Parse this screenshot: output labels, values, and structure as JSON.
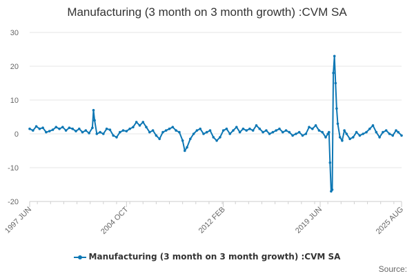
{
  "chart_data": {
    "type": "line",
    "title": "Manufacturing (3 month on 3 month growth) :CVM SA",
    "xlabel": "",
    "ylabel": "",
    "ylim": [
      -20,
      30
    ],
    "yticks": [
      30,
      20,
      10,
      0,
      -10,
      -20
    ],
    "xticks": [
      "1997 JUN",
      "2004 OCT",
      "2012 FEB",
      "2019 JUN",
      "2025 AUG"
    ],
    "x_range": [
      "1997 JUN",
      "2025 AUG"
    ],
    "grid": "horizontal",
    "legend": "bottom",
    "color": "#0d77b4",
    "series": [
      {
        "name": "Manufacturing (3 month on 3 month growth) :CVM SA",
        "values": [
          [
            "1997-06",
            1.5
          ],
          [
            "1997-09",
            1.0
          ],
          [
            "1997-12",
            2.2
          ],
          [
            "1998-03",
            1.5
          ],
          [
            "1998-06",
            1.8
          ],
          [
            "1998-09",
            0.5
          ],
          [
            "1998-12",
            0.8
          ],
          [
            "1999-03",
            1.2
          ],
          [
            "1999-06",
            2.0
          ],
          [
            "1999-09",
            1.5
          ],
          [
            "1999-12",
            2.0
          ],
          [
            "2000-03",
            1.0
          ],
          [
            "2000-06",
            1.8
          ],
          [
            "2000-09",
            1.5
          ],
          [
            "2000-12",
            0.8
          ],
          [
            "2001-03",
            1.5
          ],
          [
            "2001-06",
            0.5
          ],
          [
            "2001-09",
            1.0
          ],
          [
            "2001-12",
            0.2
          ],
          [
            "2002-03",
            1.8
          ],
          [
            "2002-04",
            7.0
          ],
          [
            "2002-05",
            4.0
          ],
          [
            "2002-07",
            0.0
          ],
          [
            "2002-10",
            0.5
          ],
          [
            "2003-01",
            0.0
          ],
          [
            "2003-04",
            1.5
          ],
          [
            "2003-07",
            1.2
          ],
          [
            "2003-10",
            -0.5
          ],
          [
            "2004-01",
            -1.0
          ],
          [
            "2004-04",
            0.5
          ],
          [
            "2004-07",
            1.0
          ],
          [
            "2004-10",
            0.8
          ],
          [
            "2005-01",
            1.5
          ],
          [
            "2005-04",
            2.0
          ],
          [
            "2005-07",
            3.5
          ],
          [
            "2005-10",
            2.5
          ],
          [
            "2006-01",
            3.5
          ],
          [
            "2006-04",
            2.0
          ],
          [
            "2006-07",
            0.5
          ],
          [
            "2006-10",
            1.0
          ],
          [
            "2007-01",
            -0.5
          ],
          [
            "2007-04",
            -1.5
          ],
          [
            "2007-07",
            0.5
          ],
          [
            "2007-10",
            1.0
          ],
          [
            "2008-01",
            1.5
          ],
          [
            "2008-04",
            2.0
          ],
          [
            "2008-07",
            1.0
          ],
          [
            "2008-10",
            0.5
          ],
          [
            "2009-01",
            -2.0
          ],
          [
            "2009-03",
            -5.0
          ],
          [
            "2009-05",
            -4.0
          ],
          [
            "2009-08",
            -1.5
          ],
          [
            "2009-11",
            0.0
          ],
          [
            "2010-02",
            1.0
          ],
          [
            "2010-05",
            1.5
          ],
          [
            "2010-08",
            0.0
          ],
          [
            "2010-11",
            0.5
          ],
          [
            "2011-02",
            1.0
          ],
          [
            "2011-05",
            -1.0
          ],
          [
            "2011-08",
            -2.0
          ],
          [
            "2011-11",
            -1.0
          ],
          [
            "2012-02",
            1.0
          ],
          [
            "2012-05",
            1.5
          ],
          [
            "2012-08",
            0.0
          ],
          [
            "2012-11",
            1.0
          ],
          [
            "2013-02",
            2.0
          ],
          [
            "2013-05",
            0.5
          ],
          [
            "2013-08",
            1.5
          ],
          [
            "2013-11",
            1.0
          ],
          [
            "2014-02",
            1.5
          ],
          [
            "2014-05",
            1.0
          ],
          [
            "2014-08",
            2.5
          ],
          [
            "2014-11",
            1.5
          ],
          [
            "2015-02",
            0.5
          ],
          [
            "2015-05",
            1.0
          ],
          [
            "2015-08",
            0.0
          ],
          [
            "2015-11",
            0.5
          ],
          [
            "2016-02",
            1.0
          ],
          [
            "2016-05",
            1.5
          ],
          [
            "2016-08",
            0.5
          ],
          [
            "2016-11",
            1.0
          ],
          [
            "2017-02",
            0.5
          ],
          [
            "2017-05",
            -0.5
          ],
          [
            "2017-08",
            0.0
          ],
          [
            "2017-11",
            0.5
          ],
          [
            "2018-02",
            -0.5
          ],
          [
            "2018-05",
            0.0
          ],
          [
            "2018-08",
            2.0
          ],
          [
            "2018-11",
            1.5
          ],
          [
            "2019-02",
            2.5
          ],
          [
            "2019-05",
            1.0
          ],
          [
            "2019-08",
            0.5
          ],
          [
            "2019-11",
            -1.0
          ],
          [
            "2020-01",
            0.0
          ],
          [
            "2020-02",
            0.5
          ],
          [
            "2020-03",
            -8.5
          ],
          [
            "2020-04",
            -17.0
          ],
          [
            "2020-05",
            -16.5
          ],
          [
            "2020-06",
            18.0
          ],
          [
            "2020-07",
            23.0
          ],
          [
            "2020-08",
            15.0
          ],
          [
            "2020-09",
            7.5
          ],
          [
            "2020-10",
            3.0
          ],
          [
            "2020-12",
            -1.0
          ],
          [
            "2021-02",
            -2.0
          ],
          [
            "2021-04",
            1.0
          ],
          [
            "2021-06",
            0.0
          ],
          [
            "2021-09",
            -1.5
          ],
          [
            "2021-12",
            -1.0
          ],
          [
            "2022-03",
            0.5
          ],
          [
            "2022-06",
            -0.5
          ],
          [
            "2022-09",
            0.0
          ],
          [
            "2022-12",
            0.5
          ],
          [
            "2023-03",
            1.5
          ],
          [
            "2023-06",
            2.5
          ],
          [
            "2023-09",
            0.5
          ],
          [
            "2023-12",
            -1.0
          ],
          [
            "2024-03",
            0.5
          ],
          [
            "2024-06",
            1.0
          ],
          [
            "2024-09",
            0.0
          ],
          [
            "2024-12",
            -0.5
          ],
          [
            "2025-03",
            1.0
          ],
          [
            "2025-05",
            0.5
          ],
          [
            "2025-08",
            -0.5
          ]
        ]
      }
    ],
    "source_label": "Source:"
  }
}
